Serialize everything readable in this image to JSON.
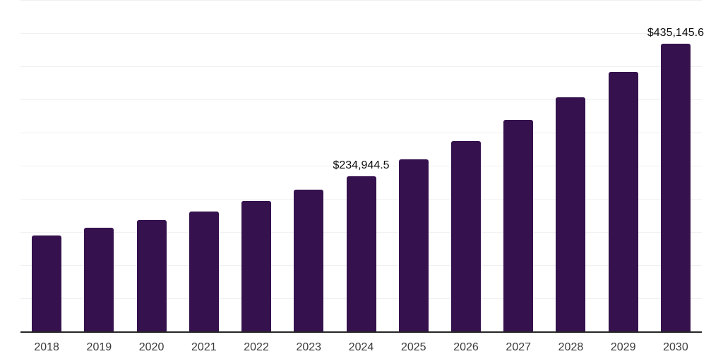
{
  "chart_data": {
    "type": "bar",
    "title": "",
    "xlabel": "",
    "ylabel": "",
    "categories": [
      "2018",
      "2019",
      "2020",
      "2021",
      "2022",
      "2023",
      "2024",
      "2025",
      "2026",
      "2027",
      "2028",
      "2029",
      "2030"
    ],
    "values": [
      145800,
      157400,
      169200,
      181900,
      198400,
      214900,
      234944.5,
      260400,
      288500,
      319800,
      354400,
      392700,
      435145.6
    ],
    "data_labels": [
      "",
      "",
      "",
      "",
      "",
      "",
      "$234,944.5",
      "",
      "",
      "",
      "",
      "",
      "$435,145.6"
    ],
    "ylim": [
      0,
      500000
    ],
    "gridline_step": 50000,
    "grid": true,
    "y_axis_tick_labels_visible": false,
    "legend_position": "none",
    "bar_color": "#35114D",
    "gridline_color": "#f0f0f2",
    "axis_line_color": "#262626",
    "x_tick_label_color": "#3b3b3b",
    "value_label_color": "#0d0d0d"
  }
}
